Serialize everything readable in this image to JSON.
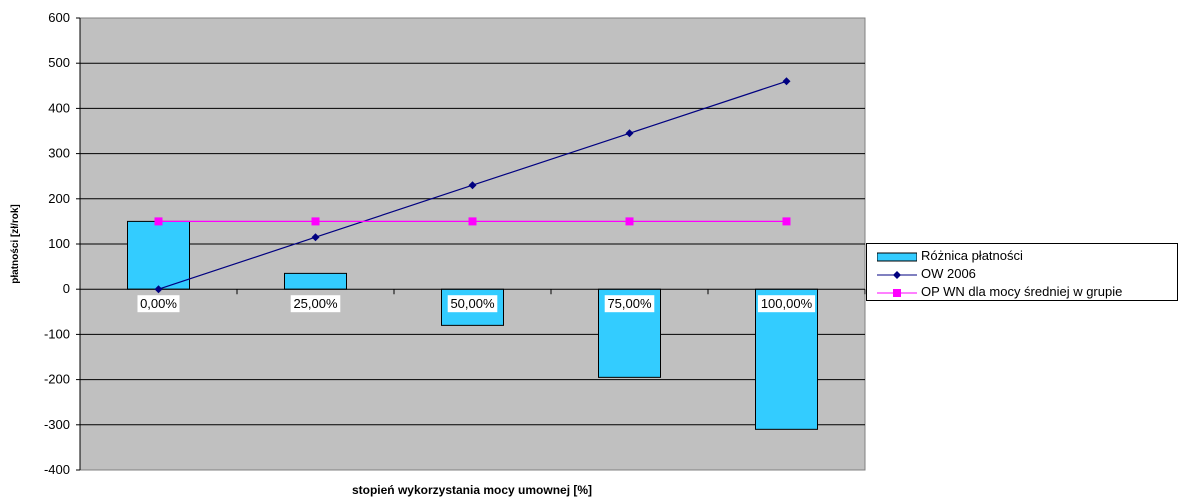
{
  "chart_data": {
    "type": "bar",
    "categories": [
      "0,00%",
      "25,00%",
      "50,00%",
      "75,00%",
      "100,00%"
    ],
    "xlabel": "stopień wykorzystania mocy umownej [%]",
    "ylabel": "płatności [zł/rok]",
    "ylim": [
      -400,
      600
    ],
    "yticks": [
      -400,
      -300,
      -200,
      -100,
      0,
      100,
      200,
      300,
      400,
      500,
      600
    ],
    "grid": true,
    "legend_position": "right",
    "series": [
      {
        "name": "Różnica płatności",
        "kind": "bar",
        "color": "#33ccff",
        "values": [
          150,
          35,
          -80,
          -195,
          -310
        ]
      },
      {
        "name": "OW 2006",
        "kind": "line",
        "color": "#000080",
        "marker": "diamond",
        "values": [
          0,
          115,
          230,
          345,
          460
        ]
      },
      {
        "name": "OP WN dla mocy średniej w grupie",
        "kind": "line",
        "color": "#ff00ff",
        "marker": "square",
        "values": [
          150,
          150,
          150,
          150,
          150
        ]
      }
    ],
    "plot_background": "#c0c0c0"
  }
}
